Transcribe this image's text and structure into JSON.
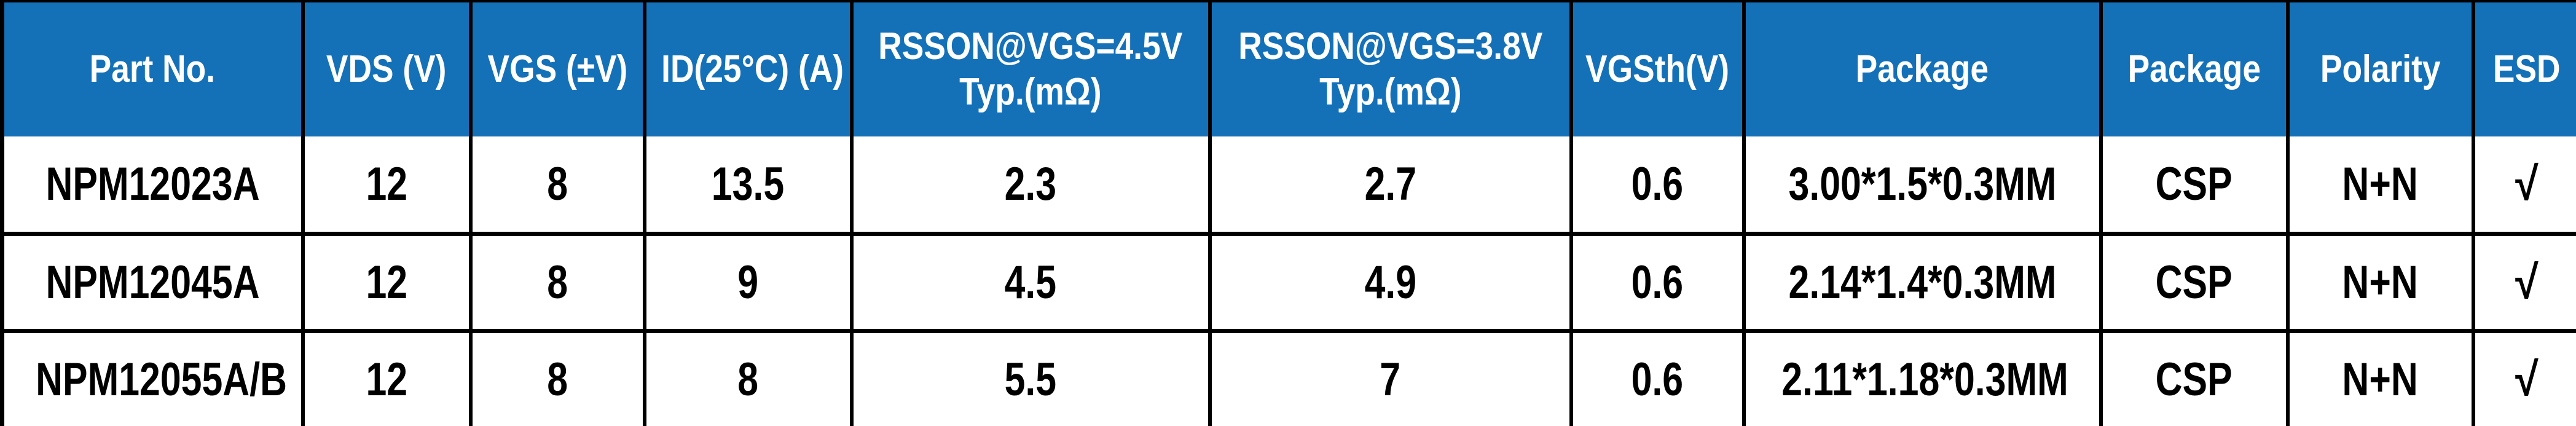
{
  "colors": {
    "header_bg": "#1471B8",
    "header_text": "#FFFFFF",
    "cell_text": "#000000",
    "grid_line": "#000000"
  },
  "table": {
    "headers": [
      "Part No.",
      "VDS (V)",
      "VGS (±V)",
      "ID(25°C) (A)",
      "RSSON@VGS=4.5V\nTyp.(mΩ)",
      "RSSON@VGS=3.8V\nTyp.(mΩ)",
      "VGSth(V)",
      "Package",
      "Package",
      "Polarity",
      "ESD"
    ],
    "rows": [
      [
        "NPM12023A",
        "12",
        "8",
        "13.5",
        "2.3",
        "2.7",
        "0.6",
        "3.00*1.5*0.3MM",
        "CSP",
        "N+N",
        "√"
      ],
      [
        "NPM12045A",
        "12",
        "8",
        "9",
        "4.5",
        "4.9",
        "0.6",
        "2.14*1.4*0.3MM",
        "CSP",
        "N+N",
        "√"
      ],
      [
        "NPM12055A/B",
        "12",
        "8",
        "8",
        "5.5",
        "7",
        "0.6",
        "2.11*1.18*0.3MM",
        "CSP",
        "N+N",
        "√"
      ]
    ]
  }
}
